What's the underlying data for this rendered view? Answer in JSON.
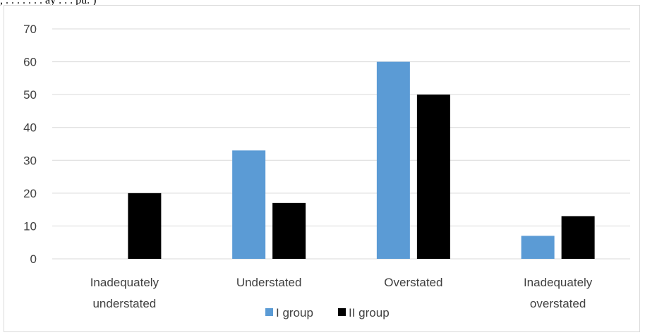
{
  "caption": ", . . . . . . . ay . . . pu. )",
  "chart_data": {
    "type": "bar",
    "title": "",
    "xlabel": "",
    "ylabel": "",
    "ylim": [
      0,
      70
    ],
    "yticks": [
      0,
      10,
      20,
      30,
      40,
      50,
      60,
      70
    ],
    "grid": true,
    "legend_position": "bottom",
    "categories": [
      [
        "Inadequately",
        "understated"
      ],
      [
        "Understated"
      ],
      [
        "Overstated"
      ],
      [
        "Inadequately",
        "overstated"
      ]
    ],
    "series": [
      {
        "name": "I group",
        "color": "#5b9bd5",
        "values": [
          0,
          33,
          60,
          7
        ]
      },
      {
        "name": "II group",
        "color": "#000000",
        "values": [
          20,
          17,
          50,
          13
        ]
      }
    ]
  }
}
